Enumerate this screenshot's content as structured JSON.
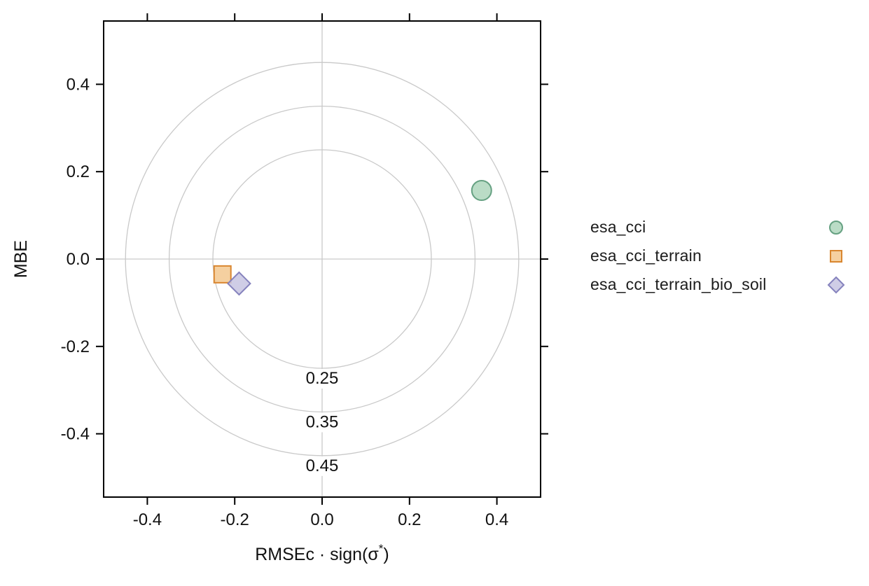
{
  "figure": {
    "background": "#ffffff",
    "frame_color": "#000000",
    "text_color": "#111111"
  },
  "chart_data": {
    "type": "scatter",
    "variant": "target-diagram",
    "title": "",
    "xlabel": {
      "prefix": "RMSEc · sign(σ",
      "sup": "*",
      "suffix": ")"
    },
    "ylabel": "MBE",
    "xlim": [
      -0.5,
      0.5
    ],
    "ylim": [
      -0.545,
      0.545
    ],
    "xticks": [
      -0.4,
      -0.2,
      0.0,
      0.2,
      0.4
    ],
    "yticks": [
      -0.4,
      -0.2,
      0.0,
      0.2,
      0.4
    ],
    "xtick_labels": [
      "-0.4",
      "-0.2",
      "0.0",
      "0.2",
      "0.4"
    ],
    "ytick_labels": [
      "-0.4",
      "-0.2",
      "0.0",
      "0.2",
      "0.4"
    ],
    "grid_color": "#c9c9c9",
    "crosshair": true,
    "reference_circles": [
      {
        "radius": 0.25,
        "label": "0.25"
      },
      {
        "radius": 0.35,
        "label": "0.35"
      },
      {
        "radius": 0.45,
        "label": "0.45"
      }
    ],
    "series": [
      {
        "name": "esa_cci",
        "marker": "circle",
        "x": 0.365,
        "y": 0.157,
        "size": 14,
        "fill": "#aed6bc",
        "stroke": "#66a182"
      },
      {
        "name": "esa_cci_terrain",
        "marker": "square",
        "x": -0.228,
        "y": -0.035,
        "size": 12,
        "fill": "#f3c88f",
        "stroke": "#d9862f"
      },
      {
        "name": "esa_cci_terrain_bio_soil",
        "marker": "diamond",
        "x": -0.19,
        "y": -0.056,
        "size": 16,
        "fill": "#c7c4e2",
        "stroke": "#8582bd"
      }
    ],
    "legend_position": "right"
  }
}
